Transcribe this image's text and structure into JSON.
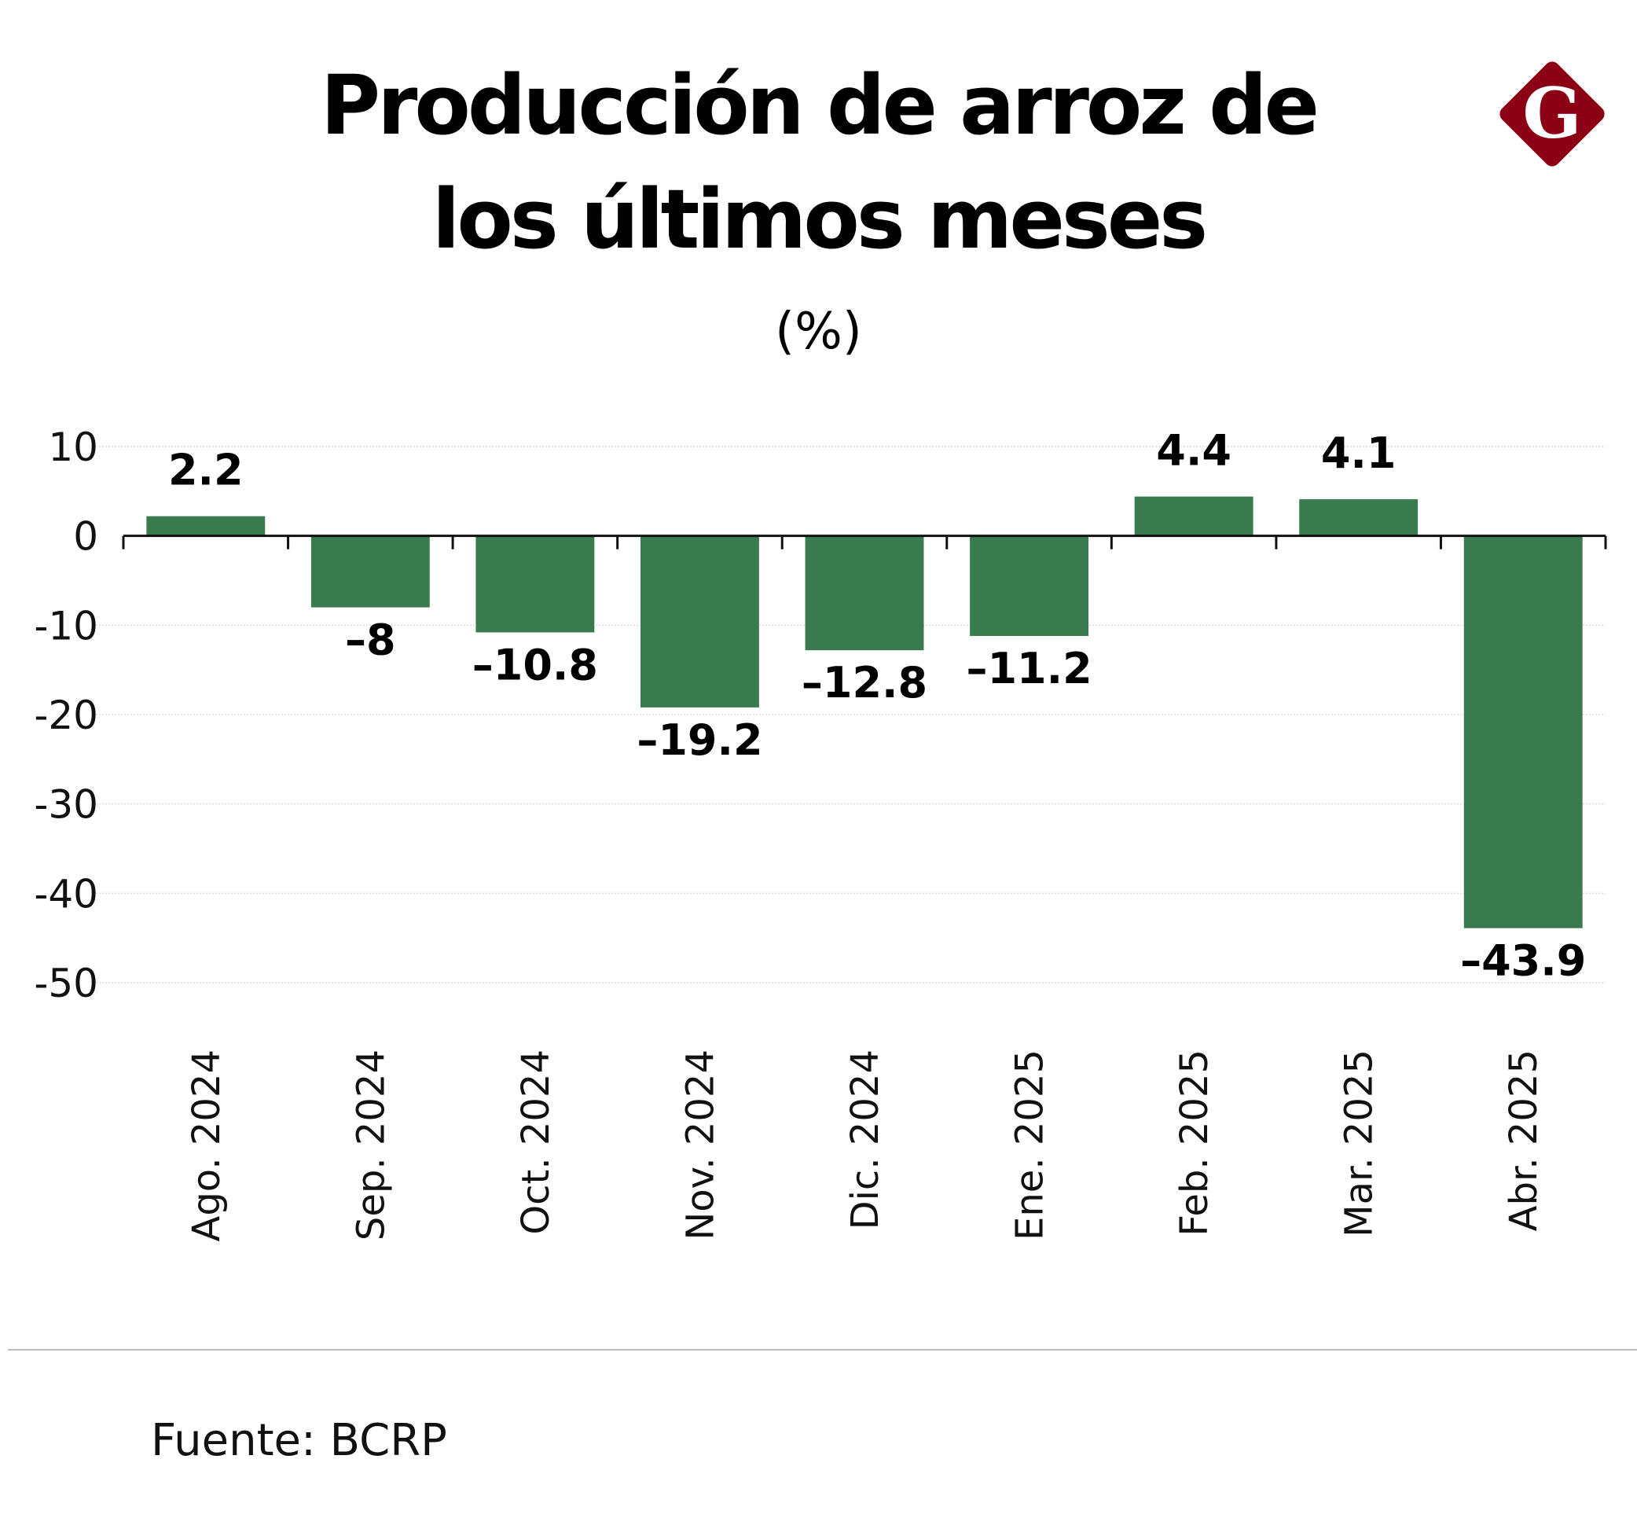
{
  "header": {
    "title_line1": "Producción de arroz de",
    "title_line2": "los últimos meses",
    "unit": "(%)"
  },
  "logo": {
    "letter": "G",
    "color": "#8b0012"
  },
  "chart_data": {
    "type": "bar",
    "title": "Producción de arroz de los últimos meses",
    "ylabel": "(%)",
    "categories": [
      "Ago. 2024",
      "Sep. 2024",
      "Oct. 2024",
      "Nov. 2024",
      "Dic. 2024",
      "Ene. 2025",
      "Feb. 2025",
      "Mar. 2025",
      "Abr. 2025"
    ],
    "values": [
      2.2,
      -8,
      -10.8,
      -19.2,
      -12.8,
      -11.2,
      4.4,
      4.1,
      -43.9
    ],
    "data_labels": [
      "2.2",
      "-8",
      "-10.8",
      "-19.2",
      "-12.8",
      "-11.2",
      "4.4",
      "4.1",
      "-43.9"
    ],
    "ylim": [
      -50,
      10
    ],
    "yticks": [
      10,
      0,
      -10,
      -20,
      -30,
      -40,
      -50
    ],
    "ytick_labels": [
      "10",
      "0",
      "-10",
      "-20",
      "-30",
      "-40",
      "-50"
    ],
    "grid": true,
    "bar_color": "#3a7a4f"
  },
  "footer": {
    "source": "Fuente: BCRP"
  }
}
